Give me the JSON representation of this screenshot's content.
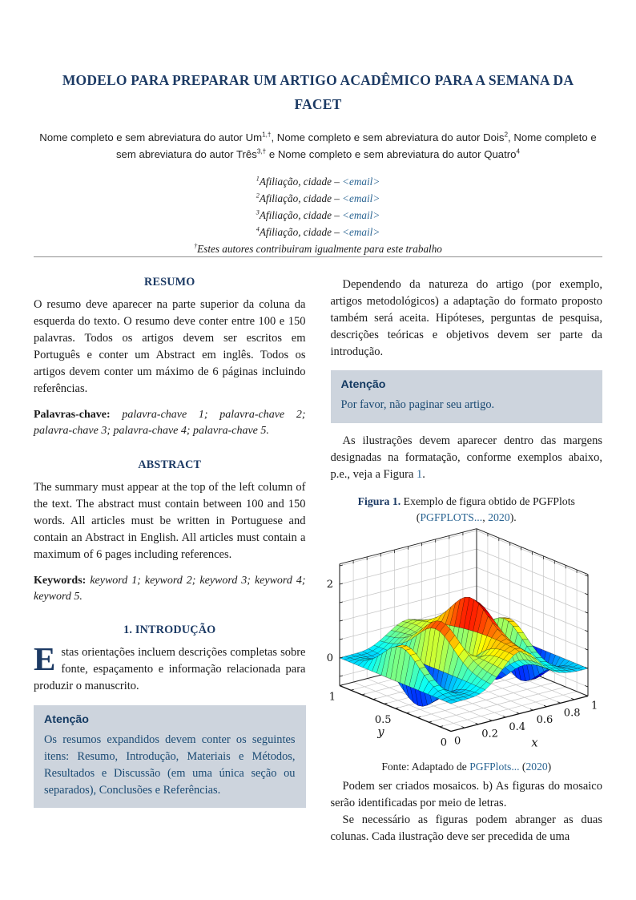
{
  "header": {
    "title": "MODELO PARA PREPARAR UM ARTIGO ACADÊMICO PARA A SEMANA DA FACET",
    "authors": [
      {
        "name": "Nome completo e sem abreviatura do autor Um",
        "sup": "1,†",
        "sep": ", "
      },
      {
        "name": "Nome completo e sem abreviatura do autor Dois",
        "sup": "2",
        "sep": ", "
      },
      {
        "name": "Nome completo e sem abreviatura do autor Três",
        "sup": "3,†",
        "sep": " e "
      },
      {
        "name": "Nome completo e sem abreviatura do autor Quatro",
        "sup": "4",
        "sep": ""
      }
    ],
    "affiliations": [
      {
        "sup": "1",
        "text": "Afiliação, cidade – ",
        "email": "<email>"
      },
      {
        "sup": "2",
        "text": "Afiliação, cidade – ",
        "email": "<email>"
      },
      {
        "sup": "3",
        "text": "Afiliação, cidade – ",
        "email": "<email>"
      },
      {
        "sup": "4",
        "text": "Afiliação, cidade – ",
        "email": "<email>"
      }
    ],
    "footnote": {
      "sup": "†",
      "text": "Estes autores contribuiram igualmente para este trabalho"
    }
  },
  "left_column": {
    "resumo": {
      "heading": "RESUMO",
      "body": "O resumo deve aparecer na parte superior da coluna da esquerda do texto. O resumo deve conter entre 100 e 150 palavras. Todos os artigos devem ser escritos em Português e conter um Abstract em inglês. Todos os artigos devem conter um máximo de 6 páginas incluindo referências.",
      "keywords_label": "Palavras-chave:",
      "keywords": "palavra-chave 1; palavra-chave 2; palavra-chave 3; palavra-chave 4; palavra-chave 5."
    },
    "abstract": {
      "heading": "ABSTRACT",
      "body": "The summary must appear at the top of the left column of the text. The abstract must contain between 100 and 150 words. All articles must be written in Portuguese and contain an Abstract in English. All articles must contain a maximum of 6 pages including references.",
      "keywords_label": "Keywords:",
      "keywords": "keyword 1; keyword 2; keyword 3; keyword 4; keyword 5."
    },
    "introducao": {
      "heading": "1.  INTRODUÇÃO",
      "dropcap": "E",
      "body": "stas orientações incluem descrições completas sobre fonte, espaçamento e informação relacionada para produzir o manuscrito."
    },
    "atencao": {
      "heading": "Atenção",
      "body": "Os resumos expandidos devem conter os seguintes itens: Resumo, Introdução, Materiais e Métodos, Resultados e Discussão (em uma única seção ou separados), Conclusões e Referências."
    }
  },
  "right_column": {
    "para1": "Dependendo da natureza do artigo (por exemplo, artigos metodológicos) a adaptação do formato proposto também será aceita. Hipóteses, perguntas de pesquisa, descrições teóricas e objetivos devem ser parte da introdução.",
    "atencao": {
      "heading": "Atenção",
      "body": "Por favor, não paginar seu artigo."
    },
    "para2_text": "As ilustrações devem aparecer dentro das margens designadas na formatação, conforme exemplos abaixo, p.e., veja a Figura ",
    "para2_link": "1",
    "para2_end": ".",
    "figure": {
      "caption_label": "Figura 1.",
      "caption_text": " Exemplo de figura obtido de PGFPlots (",
      "caption_cite": "PGFPLOTS...",
      "caption_mid": ", ",
      "caption_year": "2020",
      "caption_close": ").",
      "fonte_label": "Fonte: Adaptado de ",
      "fonte_link": "PGFPlots...",
      "fonte_mid": " (",
      "fonte_year": "2020",
      "fonte_close": ")"
    },
    "para3": "Podem ser criados mosaicos. b) As figuras do mosaico serão identificadas por meio de letras.",
    "para4": "Se necessário as figuras podem abranger as duas colunas. Cada ilustração deve ser precedida de uma"
  },
  "colors": {
    "accent_navy": "#1c3a64",
    "link_blue": "#2b6593",
    "attention_bg": "#cdd4dd",
    "attention_text": "#1a4a73"
  },
  "chart_data": {
    "type": "surface3d",
    "formula": "sin(8*pi*x) * exp(-20*(y-0.5)^2) + exp(-30*(x-0.5)^2 - (y-0.25)^2 - (x-0.5)*(y-0.25))",
    "x_domain": [
      0,
      1
    ],
    "y_domain": [
      0,
      1
    ],
    "samples": 25,
    "xlabel": "x",
    "ylabel": "y",
    "x_ticks": [
      "0",
      "0.2",
      "0.4",
      "0.6",
      "0.8",
      "1"
    ],
    "y_ticks": [
      "0",
      "0.5",
      "1"
    ],
    "z_ticks": [
      "0",
      "2"
    ],
    "zlim": [
      -0.75,
      2.55
    ],
    "grid": {
      "xy_step": 0.1,
      "z_step": 0.5,
      "minor_tick_step": 0.1
    },
    "colormap": "jet",
    "legend": "none"
  }
}
